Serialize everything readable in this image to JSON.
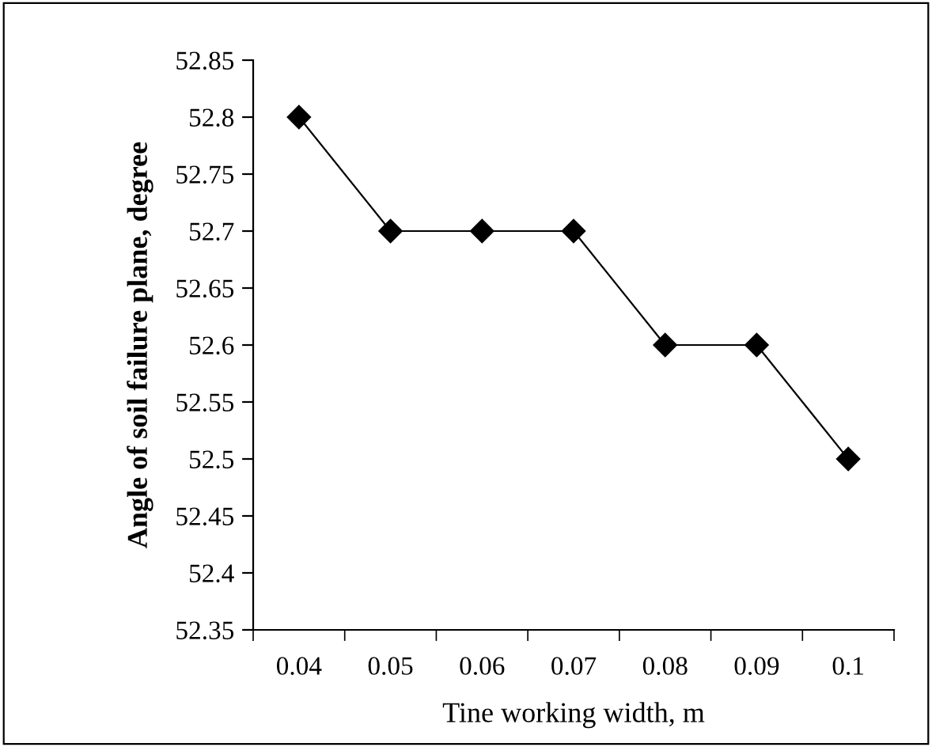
{
  "chart_data": {
    "type": "line",
    "xlabel": "Tine working width, m",
    "ylabel": "Angle of soil failure plane, degree",
    "categories": [
      "0.04",
      "0.05",
      "0.06",
      "0.07",
      "0.08",
      "0.09",
      "0.1"
    ],
    "series": [
      {
        "color": "#000000",
        "values": [
          52.8,
          52.7,
          52.7,
          52.7,
          52.6,
          52.6,
          52.5
        ]
      }
    ],
    "ylim": [
      52.35,
      52.85
    ],
    "yticks": [
      52.35,
      52.4,
      52.45,
      52.5,
      52.55,
      52.6,
      52.65,
      52.7,
      52.75,
      52.8,
      52.85
    ],
    "marker": "diamond",
    "line_style": "solid",
    "grid": false,
    "legend": false
  }
}
